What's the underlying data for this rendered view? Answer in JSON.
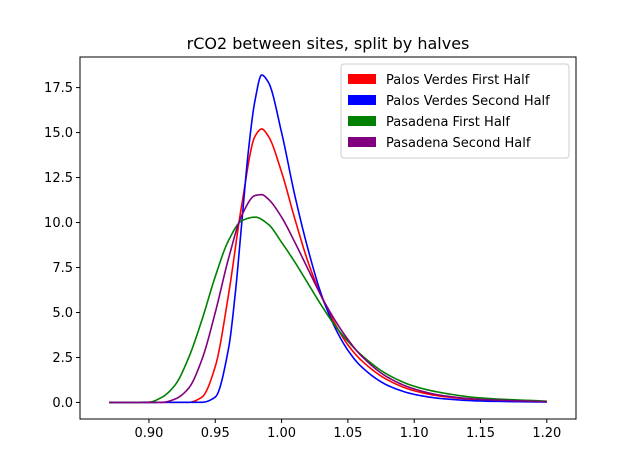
{
  "chart_data": {
    "type": "line",
    "title": "rCO2 between sites, split by halves",
    "xlabel": "",
    "ylabel": "",
    "xlim": [
      0.848,
      1.222
    ],
    "ylim": [
      -0.92,
      19.2
    ],
    "x_ticks": [
      {
        "value": 0.9,
        "label": "0.90"
      },
      {
        "value": 0.95,
        "label": "0.95"
      },
      {
        "value": 1.0,
        "label": "1.00"
      },
      {
        "value": 1.05,
        "label": "1.05"
      },
      {
        "value": 1.1,
        "label": "1.10"
      },
      {
        "value": 1.15,
        "label": "1.15"
      },
      {
        "value": 1.2,
        "label": "1.20"
      }
    ],
    "y_ticks": [
      {
        "value": 0.0,
        "label": "0.0"
      },
      {
        "value": 2.5,
        "label": "2.5"
      },
      {
        "value": 5.0,
        "label": "5.0"
      },
      {
        "value": 7.5,
        "label": "7.5"
      },
      {
        "value": 10.0,
        "label": "10.0"
      },
      {
        "value": 12.5,
        "label": "12.5"
      },
      {
        "value": 15.0,
        "label": "15.0"
      },
      {
        "value": 17.5,
        "label": "17.5"
      }
    ],
    "grid": false,
    "legend_position": "top-right",
    "series": [
      {
        "name": "Palos Verdes First Half",
        "color": "#ff0000",
        "points": [
          [
            0.87,
            0
          ],
          [
            0.93,
            0.01
          ],
          [
            0.94,
            0.3
          ],
          [
            0.95,
            2.0
          ],
          [
            0.96,
            6.0
          ],
          [
            0.97,
            11.0
          ],
          [
            0.98,
            14.8
          ],
          [
            0.985,
            15.2
          ],
          [
            0.99,
            14.8
          ],
          [
            1.0,
            12.8
          ],
          [
            1.01,
            10.2
          ],
          [
            1.02,
            7.8
          ],
          [
            1.03,
            5.9
          ],
          [
            1.04,
            4.4
          ],
          [
            1.05,
            3.2
          ],
          [
            1.06,
            2.35
          ],
          [
            1.08,
            1.25
          ],
          [
            1.1,
            0.65
          ],
          [
            1.12,
            0.35
          ],
          [
            1.15,
            0.15
          ],
          [
            1.2,
            0.04
          ]
        ]
      },
      {
        "name": "Palos Verdes Second Half",
        "color": "#0000ff",
        "points": [
          [
            0.87,
            0
          ],
          [
            0.94,
            0.01
          ],
          [
            0.95,
            0.3
          ],
          [
            0.96,
            3.0
          ],
          [
            0.965,
            6.0
          ],
          [
            0.97,
            10.0
          ],
          [
            0.975,
            14.0
          ],
          [
            0.98,
            16.8
          ],
          [
            0.985,
            18.2
          ],
          [
            0.99,
            17.8
          ],
          [
            1.0,
            15.0
          ],
          [
            1.01,
            11.5
          ],
          [
            1.02,
            8.5
          ],
          [
            1.03,
            6.0
          ],
          [
            1.04,
            4.2
          ],
          [
            1.05,
            2.9
          ],
          [
            1.06,
            2.0
          ],
          [
            1.08,
            0.95
          ],
          [
            1.1,
            0.45
          ],
          [
            1.12,
            0.22
          ],
          [
            1.15,
            0.08
          ],
          [
            1.2,
            0.02
          ]
        ]
      },
      {
        "name": "Pasadena First Half",
        "color": "#008000",
        "points": [
          [
            0.87,
            0
          ],
          [
            0.9,
            0.02
          ],
          [
            0.91,
            0.3
          ],
          [
            0.92,
            1.0
          ],
          [
            0.93,
            2.5
          ],
          [
            0.94,
            4.6
          ],
          [
            0.95,
            7.0
          ],
          [
            0.96,
            9.0
          ],
          [
            0.97,
            10.1
          ],
          [
            0.98,
            10.3
          ],
          [
            0.99,
            9.9
          ],
          [
            1.0,
            8.9
          ],
          [
            1.01,
            7.8
          ],
          [
            1.02,
            6.6
          ],
          [
            1.03,
            5.4
          ],
          [
            1.04,
            4.3
          ],
          [
            1.05,
            3.4
          ],
          [
            1.06,
            2.65
          ],
          [
            1.08,
            1.55
          ],
          [
            1.1,
            0.9
          ],
          [
            1.12,
            0.55
          ],
          [
            1.15,
            0.25
          ],
          [
            1.2,
            0.07
          ]
        ]
      },
      {
        "name": "Pasadena Second Half",
        "color": "#800080",
        "points": [
          [
            0.87,
            0
          ],
          [
            0.91,
            0.01
          ],
          [
            0.92,
            0.2
          ],
          [
            0.93,
            0.8
          ],
          [
            0.94,
            2.4
          ],
          [
            0.95,
            5.0
          ],
          [
            0.96,
            8.0
          ],
          [
            0.97,
            10.4
          ],
          [
            0.98,
            11.5
          ],
          [
            0.985,
            11.55
          ],
          [
            0.99,
            11.3
          ],
          [
            1.0,
            10.3
          ],
          [
            1.01,
            8.9
          ],
          [
            1.02,
            7.4
          ],
          [
            1.03,
            5.9
          ],
          [
            1.04,
            4.6
          ],
          [
            1.05,
            3.5
          ],
          [
            1.06,
            2.6
          ],
          [
            1.08,
            1.4
          ],
          [
            1.1,
            0.75
          ],
          [
            1.12,
            0.4
          ],
          [
            1.15,
            0.17
          ],
          [
            1.2,
            0.04
          ]
        ]
      }
    ]
  }
}
